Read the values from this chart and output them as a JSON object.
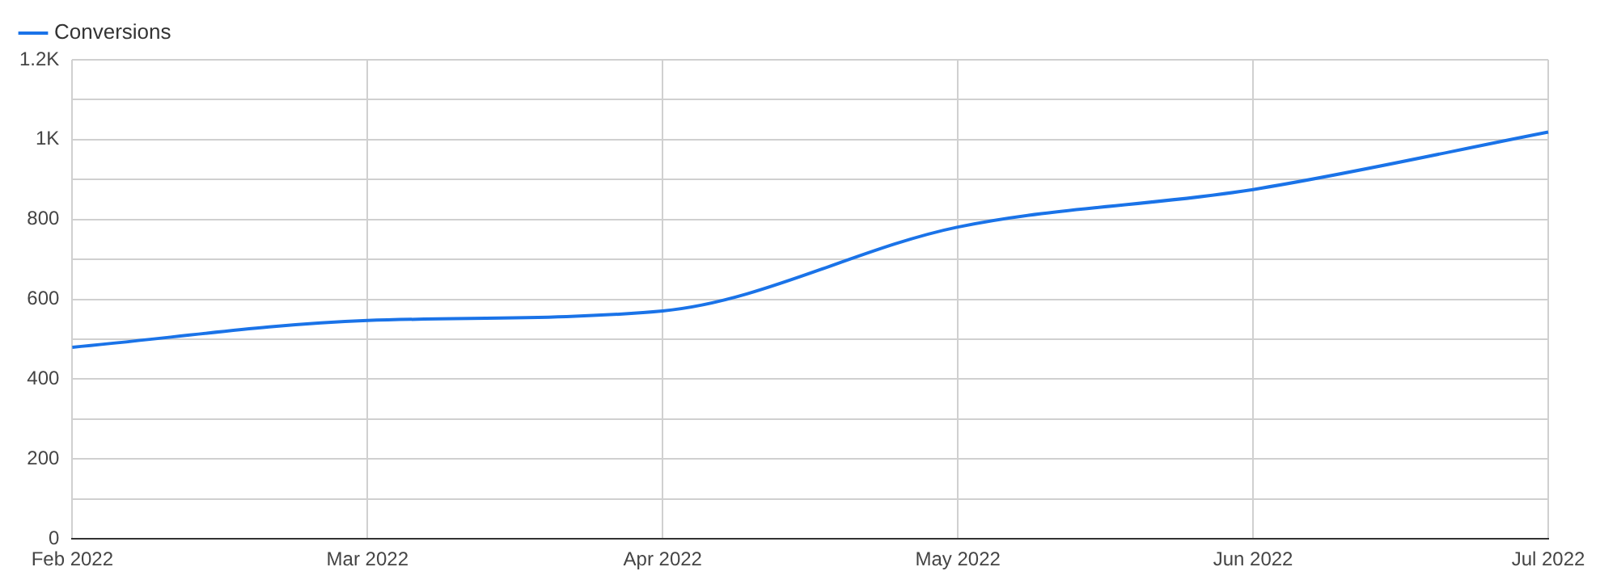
{
  "chart_data": {
    "type": "line",
    "categories": [
      "Feb 2022",
      "Mar 2022",
      "Apr 2022",
      "May 2022",
      "Jun 2022",
      "Jul 2022"
    ],
    "series": [
      {
        "name": "Conversions",
        "color": "#1a73e8",
        "values": [
          480,
          547,
          571,
          781,
          875,
          1019
        ]
      }
    ],
    "ylim": [
      0,
      1200
    ],
    "yticks": [
      0,
      {
        "value": 100,
        "label": null
      },
      200,
      {
        "value": 300,
        "label": null
      },
      400,
      {
        "value": 500,
        "label": null
      },
      600,
      {
        "value": 700,
        "label": null
      },
      800,
      {
        "value": 900,
        "label": null
      },
      {
        "value": 1000,
        "label": "1K"
      },
      {
        "value": 1100,
        "label": null
      },
      {
        "value": 1200,
        "label": "1.2K"
      }
    ],
    "grid": true,
    "legend": "top left",
    "marker": "none",
    "line_style": "solid"
  }
}
